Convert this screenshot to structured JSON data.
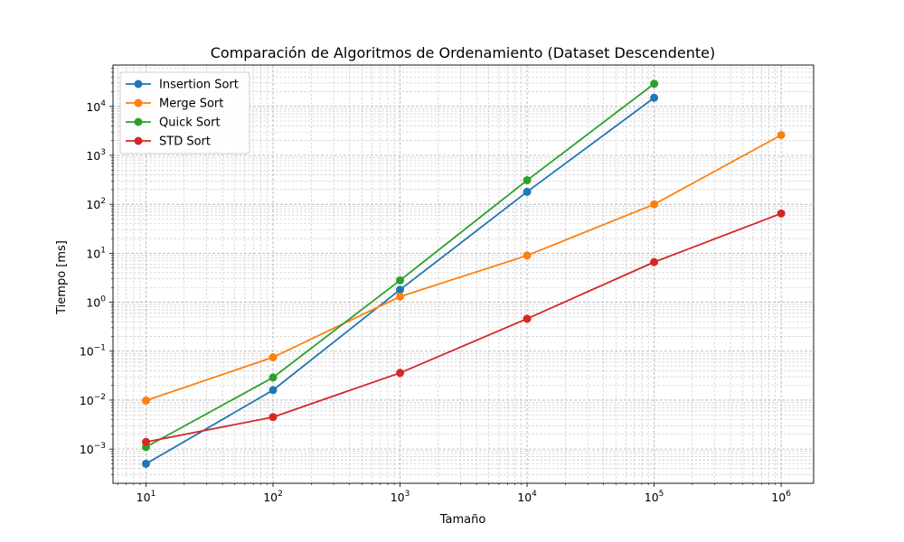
{
  "chart_data": {
    "type": "line",
    "title": "Comparación de Algoritmos de Ordenamiento (Dataset Descendente)",
    "xlabel": "Tamaño",
    "ylabel": "Tiempo [ms]",
    "xscale": "log",
    "yscale": "log",
    "xlim": [
      5.5,
      1800000
    ],
    "ylim": [
      0.0002,
      70000
    ],
    "x_ticks": [
      {
        "value": 10,
        "base": "10",
        "exp": "1"
      },
      {
        "value": 100,
        "base": "10",
        "exp": "2"
      },
      {
        "value": 1000,
        "base": "10",
        "exp": "3"
      },
      {
        "value": 10000,
        "base": "10",
        "exp": "4"
      },
      {
        "value": 100000,
        "base": "10",
        "exp": "5"
      },
      {
        "value": 1000000,
        "base": "10",
        "exp": "6"
      }
    ],
    "y_ticks": [
      {
        "value": 0.001,
        "base": "10",
        "exp": "−3"
      },
      {
        "value": 0.01,
        "base": "10",
        "exp": "−2"
      },
      {
        "value": 0.1,
        "base": "10",
        "exp": "−1"
      },
      {
        "value": 1,
        "base": "10",
        "exp": "0"
      },
      {
        "value": 10,
        "base": "10",
        "exp": "1"
      },
      {
        "value": 100,
        "base": "10",
        "exp": "2"
      },
      {
        "value": 1000,
        "base": "10",
        "exp": "3"
      },
      {
        "value": 10000,
        "base": "10",
        "exp": "4"
      }
    ],
    "grid": "major and minor",
    "legend_position": "top-left",
    "series": [
      {
        "name": "Insertion Sort",
        "color": "#1f77b4",
        "x": [
          10,
          100,
          1000,
          10000,
          100000
        ],
        "y": [
          0.0005,
          0.016,
          1.8,
          180,
          15000
        ]
      },
      {
        "name": "Merge Sort",
        "color": "#ff7f0e",
        "x": [
          10,
          100,
          1000,
          10000,
          100000,
          1000000
        ],
        "y": [
          0.0098,
          0.075,
          1.3,
          9,
          100,
          2600
        ]
      },
      {
        "name": "Quick Sort",
        "color": "#2ca02c",
        "x": [
          10,
          100,
          1000,
          10000,
          100000
        ],
        "y": [
          0.0011,
          0.029,
          2.8,
          310,
          29000
        ]
      },
      {
        "name": "STD Sort",
        "color": "#d62728",
        "x": [
          10,
          100,
          1000,
          10000,
          100000,
          1000000
        ],
        "y": [
          0.0014,
          0.0045,
          0.036,
          0.46,
          6.6,
          65
        ]
      }
    ]
  }
}
